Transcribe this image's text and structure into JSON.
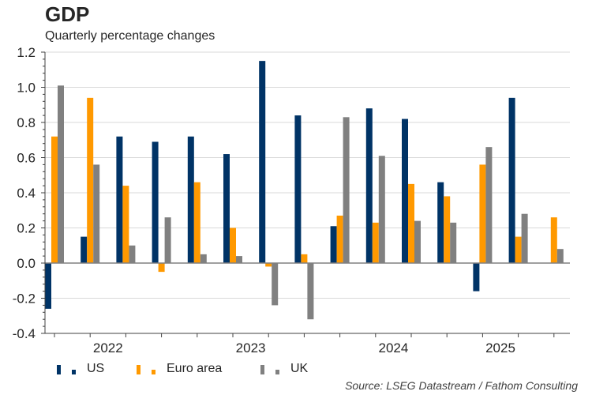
{
  "chart_data": {
    "type": "bar",
    "title": "GDP",
    "subtitle": "Quarterly percentage changes",
    "xlabel": "",
    "ylabel": "",
    "ylim": [
      -0.4,
      1.2
    ],
    "yticks": [
      -0.4,
      -0.2,
      0.0,
      0.2,
      0.4,
      0.6,
      0.8,
      1.0,
      1.2
    ],
    "ytick_labels": [
      "-0.4",
      "-0.2",
      "0.0",
      "0.2",
      "0.4",
      "0.6",
      "0.8",
      "1.0",
      "1.2"
    ],
    "minor_ytick_step": 0.04,
    "grid": true,
    "categories": [
      "2022 Q1",
      "2022 Q2",
      "2022 Q3",
      "2022 Q4",
      "2023 Q1",
      "2023 Q2",
      "2023 Q3",
      "2023 Q4",
      "2024 Q1",
      "2024 Q2",
      "2024 Q3",
      "2024 Q4",
      "2025 Q1",
      "2025 Q2",
      "2025 Q3"
    ],
    "year_labels": [
      {
        "label": "2022",
        "center_index": 1.5
      },
      {
        "label": "2023",
        "center_index": 5.5
      },
      {
        "label": "2024",
        "center_index": 9.5
      },
      {
        "label": "2025",
        "center_index": 12.5
      }
    ],
    "series": [
      {
        "name": "US",
        "color": "#003366",
        "values": [
          -0.26,
          0.15,
          0.72,
          0.69,
          0.72,
          0.62,
          1.15,
          0.84,
          0.21,
          0.88,
          0.82,
          0.46,
          -0.16,
          0.94,
          null
        ]
      },
      {
        "name": "Euro area",
        "color": "#FF9900",
        "values": [
          0.72,
          0.94,
          0.44,
          -0.05,
          0.46,
          0.2,
          -0.02,
          0.05,
          0.27,
          0.23,
          0.45,
          0.38,
          0.56,
          0.15,
          0.26
        ]
      },
      {
        "name": "UK",
        "color": "#808080",
        "values": [
          1.01,
          0.56,
          0.1,
          0.26,
          0.05,
          0.04,
          -0.24,
          -0.32,
          0.83,
          0.61,
          0.24,
          0.23,
          0.66,
          0.28,
          0.08
        ]
      }
    ],
    "legend_position": "bottom-left",
    "source": "Source: LSEG Datastream / Fathom Consulting"
  }
}
